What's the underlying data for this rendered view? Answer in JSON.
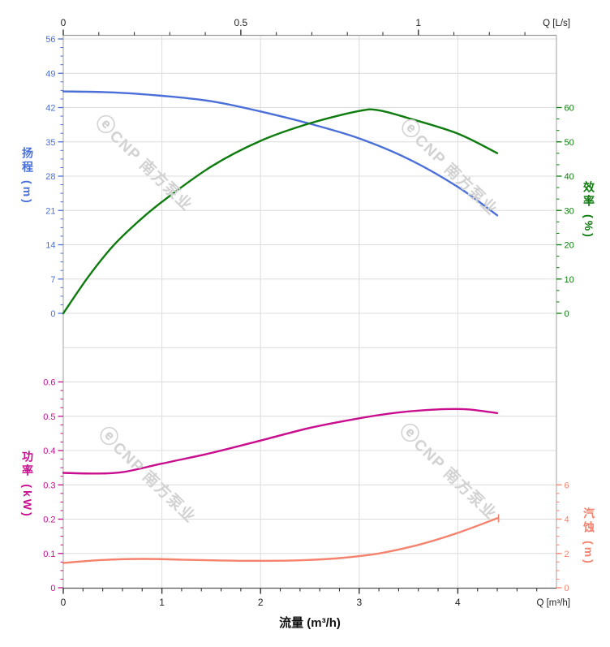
{
  "watermark": {
    "logo": "ⓔ",
    "text": "CNP 南方泵业",
    "color": "#d2d2d2"
  },
  "chart_data": {
    "type": "line",
    "title": "",
    "grid": true,
    "x_range": [
      0,
      5
    ],
    "x_axis": {
      "title": "流量 (m³/h)",
      "corner_label": "Q [m³/h]",
      "major_ticks": [
        0,
        1,
        2,
        3,
        4
      ],
      "minor_step": 0.2,
      "color": "#333333"
    },
    "x_top_axis": {
      "corner_label": "Q [L/s]",
      "major_ticks": [
        0,
        0.5,
        1
      ],
      "minor_step": 0.1,
      "m3h_per_unit": 3.6,
      "color": "#333333"
    },
    "y_axes": [
      {
        "id": "head",
        "side": "left",
        "title": "扬程 (m)",
        "color": "#4a6fd8",
        "tick_values": [
          0,
          7,
          14,
          21,
          28,
          35,
          42,
          49,
          56
        ],
        "unit_per_grid": 7,
        "grid_zero": 8,
        "minor_div": 4
      },
      {
        "id": "eff",
        "side": "right",
        "title": "效率 (%)",
        "color": "#0d7b0d",
        "tick_values": [
          0,
          10,
          20,
          30,
          40,
          50,
          60
        ],
        "unit_per_grid": 10,
        "grid_zero": 8,
        "minor_div": 3
      },
      {
        "id": "power",
        "side": "left",
        "title": "功率 (kW)",
        "color": "#c90d8f",
        "tick_values": [
          0,
          0.1,
          0.2,
          0.3,
          0.4,
          0.5,
          0.6
        ],
        "unit_per_grid": 0.1,
        "grid_zero": 16,
        "minor_div": 4
      },
      {
        "id": "npsh",
        "side": "right",
        "title": "汽蚀 (m)",
        "color": "#f5826d",
        "tick_values": [
          0,
          2,
          4,
          6
        ],
        "unit_per_grid": 2,
        "grid_zero": 16,
        "minor_div": 4
      }
    ],
    "series": [
      {
        "id": "head",
        "name": "扬程",
        "unit": "m",
        "axis": "head",
        "color": "#4a6fd8",
        "end_tick": false,
        "points": [
          [
            0,
            45.3
          ],
          [
            0.5,
            45.1
          ],
          [
            1,
            44.4
          ],
          [
            1.5,
            43.3
          ],
          [
            2,
            41.2
          ],
          [
            2.5,
            38.7
          ],
          [
            3,
            35.7
          ],
          [
            3.5,
            31.5
          ],
          [
            4,
            25.8
          ],
          [
            4.4,
            20.0
          ]
        ]
      },
      {
        "id": "eff",
        "name": "效率",
        "unit": "%",
        "axis": "eff",
        "color": "#0d7b0d",
        "end_tick": false,
        "points": [
          [
            0,
            0
          ],
          [
            0.25,
            10.5
          ],
          [
            0.5,
            19.5
          ],
          [
            0.75,
            26.5
          ],
          [
            1,
            32.5
          ],
          [
            1.5,
            42.8
          ],
          [
            2,
            50.3
          ],
          [
            2.5,
            55.4
          ],
          [
            3,
            59.0
          ],
          [
            3.2,
            59.2
          ],
          [
            3.5,
            56.9
          ],
          [
            4,
            52.4
          ],
          [
            4.4,
            46.7
          ]
        ]
      },
      {
        "id": "power",
        "name": "功率",
        "unit": "kW",
        "axis": "power",
        "color": "#c90d8f",
        "end_tick": false,
        "points": [
          [
            0,
            0.335
          ],
          [
            0.3,
            0.333
          ],
          [
            0.6,
            0.337
          ],
          [
            1,
            0.362
          ],
          [
            1.5,
            0.393
          ],
          [
            2,
            0.429
          ],
          [
            2.5,
            0.466
          ],
          [
            3,
            0.494
          ],
          [
            3.4,
            0.511
          ],
          [
            3.8,
            0.52
          ],
          [
            4.1,
            0.52
          ],
          [
            4.4,
            0.509
          ]
        ]
      },
      {
        "id": "npsh",
        "name": "汽蚀",
        "unit": "m",
        "axis": "npsh",
        "color": "#f5826d",
        "end_tick": true,
        "points": [
          [
            0,
            1.45
          ],
          [
            0.4,
            1.62
          ],
          [
            0.8,
            1.68
          ],
          [
            1.2,
            1.64
          ],
          [
            1.6,
            1.59
          ],
          [
            2,
            1.57
          ],
          [
            2.4,
            1.6
          ],
          [
            2.8,
            1.73
          ],
          [
            3.2,
            2.0
          ],
          [
            3.6,
            2.5
          ],
          [
            4,
            3.2
          ],
          [
            4.4,
            4.05
          ]
        ]
      }
    ]
  }
}
